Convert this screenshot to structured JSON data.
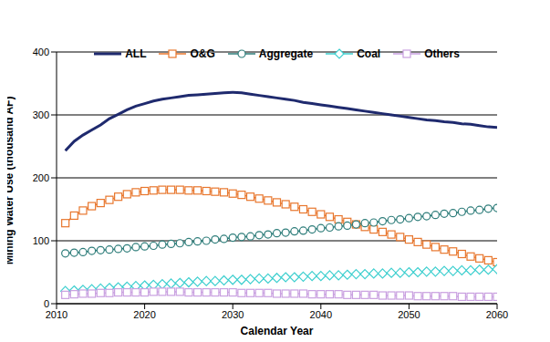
{
  "chart_data": {
    "type": "line",
    "x_label": "Calendar Year",
    "y_label": "Mining Water Use (thousand AF)",
    "x": [
      2011,
      2012,
      2013,
      2014,
      2015,
      2016,
      2017,
      2018,
      2019,
      2020,
      2021,
      2022,
      2023,
      2024,
      2025,
      2026,
      2027,
      2028,
      2029,
      2030,
      2031,
      2032,
      2033,
      2034,
      2035,
      2036,
      2037,
      2038,
      2039,
      2040,
      2041,
      2042,
      2043,
      2044,
      2045,
      2046,
      2047,
      2048,
      2049,
      2050,
      2051,
      2052,
      2053,
      2054,
      2055,
      2056,
      2057,
      2058,
      2059,
      2060
    ],
    "series": [
      {
        "name": "ALL",
        "color": "#1f2a6e",
        "marker": "none",
        "values": [
          243,
          258,
          268,
          276,
          284,
          294,
          301,
          308,
          314,
          318,
          322,
          325,
          327,
          329,
          331,
          332,
          333,
          334,
          335,
          336,
          335,
          333,
          331,
          329,
          327,
          325,
          323,
          320,
          318,
          316,
          314,
          312,
          310,
          308,
          306,
          304,
          302,
          300,
          298,
          296,
          294,
          292,
          291,
          289,
          288,
          286,
          285,
          283,
          281,
          280
        ]
      },
      {
        "name": "O&G",
        "color": "#e8772e",
        "marker": "square",
        "values": [
          128,
          140,
          148,
          155,
          160,
          165,
          170,
          174,
          177,
          179,
          180,
          181,
          181,
          181,
          180,
          180,
          179,
          178,
          177,
          175,
          173,
          170,
          167,
          164,
          161,
          158,
          154,
          150,
          146,
          142,
          138,
          134,
          130,
          126,
          122,
          118,
          114,
          110,
          106,
          102,
          98,
          94,
          90,
          86,
          83,
          79,
          75,
          72,
          69,
          66
        ]
      },
      {
        "name": "Aggregate",
        "color": "#2e7d7a",
        "marker": "circle",
        "values": [
          80,
          81,
          82,
          84,
          85,
          86,
          87,
          88,
          90,
          91,
          92,
          94,
          95,
          96,
          98,
          99,
          100,
          102,
          103,
          105,
          106,
          107,
          109,
          110,
          112,
          113,
          115,
          116,
          118,
          120,
          121,
          123,
          124,
          126,
          128,
          129,
          131,
          133,
          134,
          136,
          138,
          139,
          141,
          143,
          144,
          146,
          148,
          149,
          151,
          152
        ]
      },
      {
        "name": "Coal",
        "color": "#3ecfcf",
        "marker": "diamond",
        "values": [
          20,
          21,
          22,
          23,
          24,
          25,
          26,
          27,
          28,
          29,
          30,
          31,
          32,
          33,
          34,
          35,
          36,
          36,
          37,
          38,
          38,
          39,
          40,
          40,
          41,
          42,
          42,
          43,
          44,
          44,
          45,
          45,
          46,
          47,
          47,
          48,
          48,
          49,
          49,
          50,
          50,
          51,
          51,
          52,
          52,
          53,
          53,
          54,
          54,
          55
        ]
      },
      {
        "name": "Others",
        "color": "#c9a0e0",
        "marker": "square",
        "values": [
          14,
          15,
          16,
          16,
          17,
          17,
          18,
          18,
          18,
          18,
          19,
          19,
          19,
          19,
          18,
          18,
          18,
          18,
          18,
          18,
          17,
          17,
          17,
          17,
          16,
          16,
          16,
          16,
          15,
          15,
          15,
          15,
          14,
          14,
          14,
          14,
          13,
          13,
          13,
          13,
          12,
          12,
          12,
          12,
          12,
          11,
          11,
          11,
          11,
          11
        ]
      }
    ],
    "xlim": [
      2010,
      2060
    ],
    "xticks": [
      2010,
      2020,
      2030,
      2040,
      2050,
      2060
    ],
    "ylim": [
      0,
      400
    ],
    "yticks": [
      0,
      100,
      200,
      300,
      400
    ],
    "grid": true,
    "legend": "top"
  }
}
